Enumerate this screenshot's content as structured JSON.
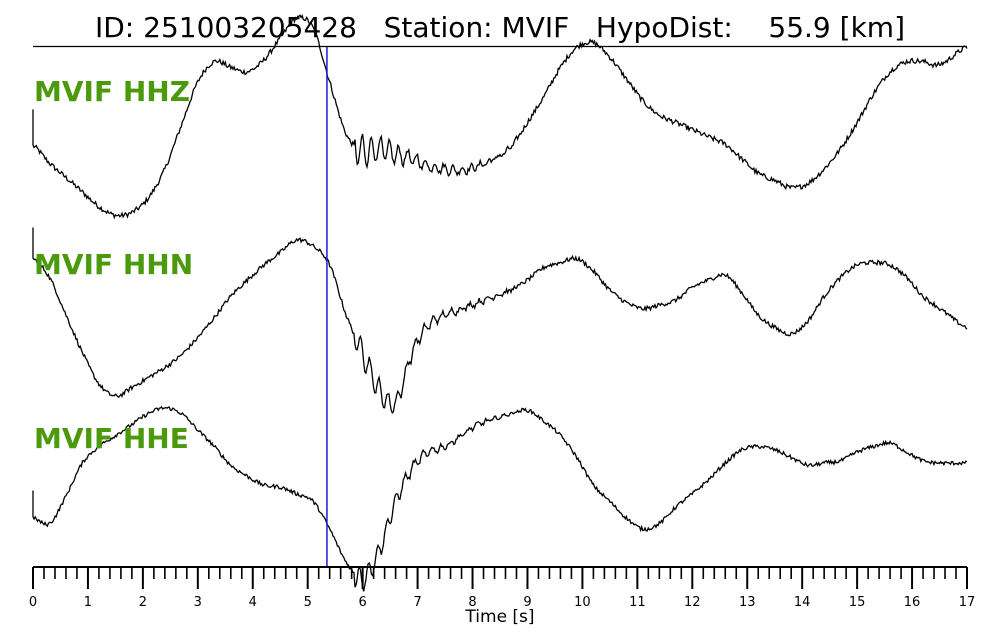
{
  "title": {
    "id_label": "ID:",
    "id_value": "251003205428",
    "station_label": "Station:",
    "station_value": "MVIF",
    "hypodist_label": "HypoDist:",
    "hypodist_value": "55.9",
    "hypodist_unit": "[km]"
  },
  "colors": {
    "trace": "#000000",
    "pick_line": "#1a1adc",
    "channel_label": "#4a9a0c",
    "axis": "#000000"
  },
  "chart_data": {
    "type": "line",
    "title": "ID: 251003205428   Station: MVIF   HypoDist:    55.9 [km]",
    "xlabel": "Time [s]",
    "xlim": [
      0,
      17
    ],
    "x_ticks": [
      0,
      1,
      2,
      3,
      4,
      5,
      6,
      7,
      8,
      9,
      10,
      11,
      12,
      13,
      14,
      15,
      16,
      17
    ],
    "minor_tick_step": 0.2,
    "grid": false,
    "pick_time": 5.35,
    "series": [
      {
        "name": "MVIF HHZ",
        "x": [
          0,
          0.3,
          0.6,
          0.9,
          1.2,
          1.5,
          1.8,
          2.1,
          2.4,
          2.7,
          3.0,
          3.3,
          3.6,
          3.9,
          4.2,
          4.5,
          4.8,
          5.1,
          5.4,
          5.7,
          6.0,
          6.3,
          6.6,
          6.9,
          7.2,
          7.5,
          7.8,
          8.1,
          8.4,
          8.7,
          9.0,
          9.3,
          9.6,
          9.9,
          10.2,
          10.5,
          10.8,
          11.1,
          11.4,
          11.7,
          12.0,
          12.3,
          12.6,
          12.9,
          13.2,
          13.5,
          13.8,
          14.1,
          14.4,
          14.7,
          15.0,
          15.3,
          15.6,
          15.9,
          16.2,
          16.5,
          17.0
        ],
        "y": [
          0.34,
          0.22,
          0.12,
          0.02,
          -0.08,
          -0.14,
          -0.12,
          -0.02,
          0.18,
          0.48,
          0.78,
          0.92,
          0.88,
          0.85,
          0.93,
          1.08,
          1.22,
          1.15,
          0.78,
          0.42,
          0.3,
          0.32,
          0.28,
          0.25,
          0.2,
          0.18,
          0.17,
          0.2,
          0.25,
          0.33,
          0.5,
          0.68,
          0.88,
          1.02,
          1.05,
          0.95,
          0.8,
          0.65,
          0.55,
          0.5,
          0.45,
          0.4,
          0.35,
          0.25,
          0.15,
          0.1,
          0.05,
          0.08,
          0.18,
          0.32,
          0.5,
          0.7,
          0.85,
          0.92,
          0.92,
          0.9,
          1.02
        ]
      },
      {
        "name": "MVIF HHN",
        "x": [
          0,
          0.3,
          0.6,
          0.9,
          1.2,
          1.5,
          1.8,
          2.1,
          2.4,
          2.7,
          3.0,
          3.3,
          3.6,
          3.9,
          4.2,
          4.5,
          4.8,
          5.1,
          5.4,
          5.7,
          6.0,
          6.3,
          6.6,
          6.9,
          7.2,
          7.5,
          7.8,
          8.1,
          8.4,
          8.7,
          9.0,
          9.3,
          9.6,
          9.9,
          10.2,
          10.5,
          10.8,
          11.1,
          11.4,
          11.7,
          12.0,
          12.3,
          12.6,
          12.9,
          13.2,
          13.5,
          13.8,
          14.1,
          14.4,
          14.7,
          15.0,
          15.3,
          15.6,
          15.9,
          16.2,
          16.5,
          17.0
        ],
        "y": [
          0.85,
          0.7,
          0.4,
          0.1,
          -0.15,
          -0.25,
          -0.18,
          -0.1,
          -0.02,
          0.08,
          0.22,
          0.38,
          0.55,
          0.68,
          0.8,
          0.9,
          1.0,
          0.95,
          0.8,
          0.4,
          0.1,
          -0.2,
          -0.3,
          0.1,
          0.32,
          0.4,
          0.45,
          0.5,
          0.55,
          0.6,
          0.68,
          0.78,
          0.82,
          0.85,
          0.75,
          0.6,
          0.5,
          0.45,
          0.48,
          0.52,
          0.62,
          0.68,
          0.72,
          0.58,
          0.4,
          0.3,
          0.25,
          0.35,
          0.55,
          0.7,
          0.8,
          0.82,
          0.8,
          0.7,
          0.55,
          0.45,
          0.3
        ]
      },
      {
        "name": "MVIF HHE",
        "x": [
          0,
          0.3,
          0.6,
          0.9,
          1.2,
          1.5,
          1.8,
          2.1,
          2.4,
          2.7,
          3.0,
          3.3,
          3.6,
          3.9,
          4.2,
          4.5,
          4.8,
          5.1,
          5.4,
          5.7,
          6.0,
          6.3,
          6.6,
          6.9,
          7.2,
          7.5,
          7.8,
          8.1,
          8.4,
          8.7,
          9.0,
          9.3,
          9.6,
          9.9,
          10.2,
          10.5,
          10.8,
          11.1,
          11.4,
          11.7,
          12.0,
          12.3,
          12.6,
          12.9,
          13.2,
          13.5,
          13.8,
          14.1,
          14.4,
          14.7,
          15.0,
          15.3,
          15.6,
          15.9,
          16.2,
          16.5,
          17.0
        ],
        "y": [
          0.2,
          0.15,
          0.4,
          0.7,
          0.85,
          0.95,
          1.05,
          1.15,
          1.2,
          1.15,
          1.0,
          0.85,
          0.68,
          0.58,
          0.5,
          0.48,
          0.42,
          0.35,
          0.1,
          -0.2,
          -0.35,
          -0.1,
          0.35,
          0.65,
          0.8,
          0.85,
          0.95,
          1.05,
          1.1,
          1.15,
          1.18,
          1.08,
          0.95,
          0.75,
          0.5,
          0.35,
          0.2,
          0.1,
          0.15,
          0.3,
          0.42,
          0.55,
          0.7,
          0.82,
          0.85,
          0.82,
          0.75,
          0.68,
          0.7,
          0.72,
          0.8,
          0.85,
          0.88,
          0.8,
          0.72,
          0.7,
          0.7
        ]
      }
    ]
  }
}
